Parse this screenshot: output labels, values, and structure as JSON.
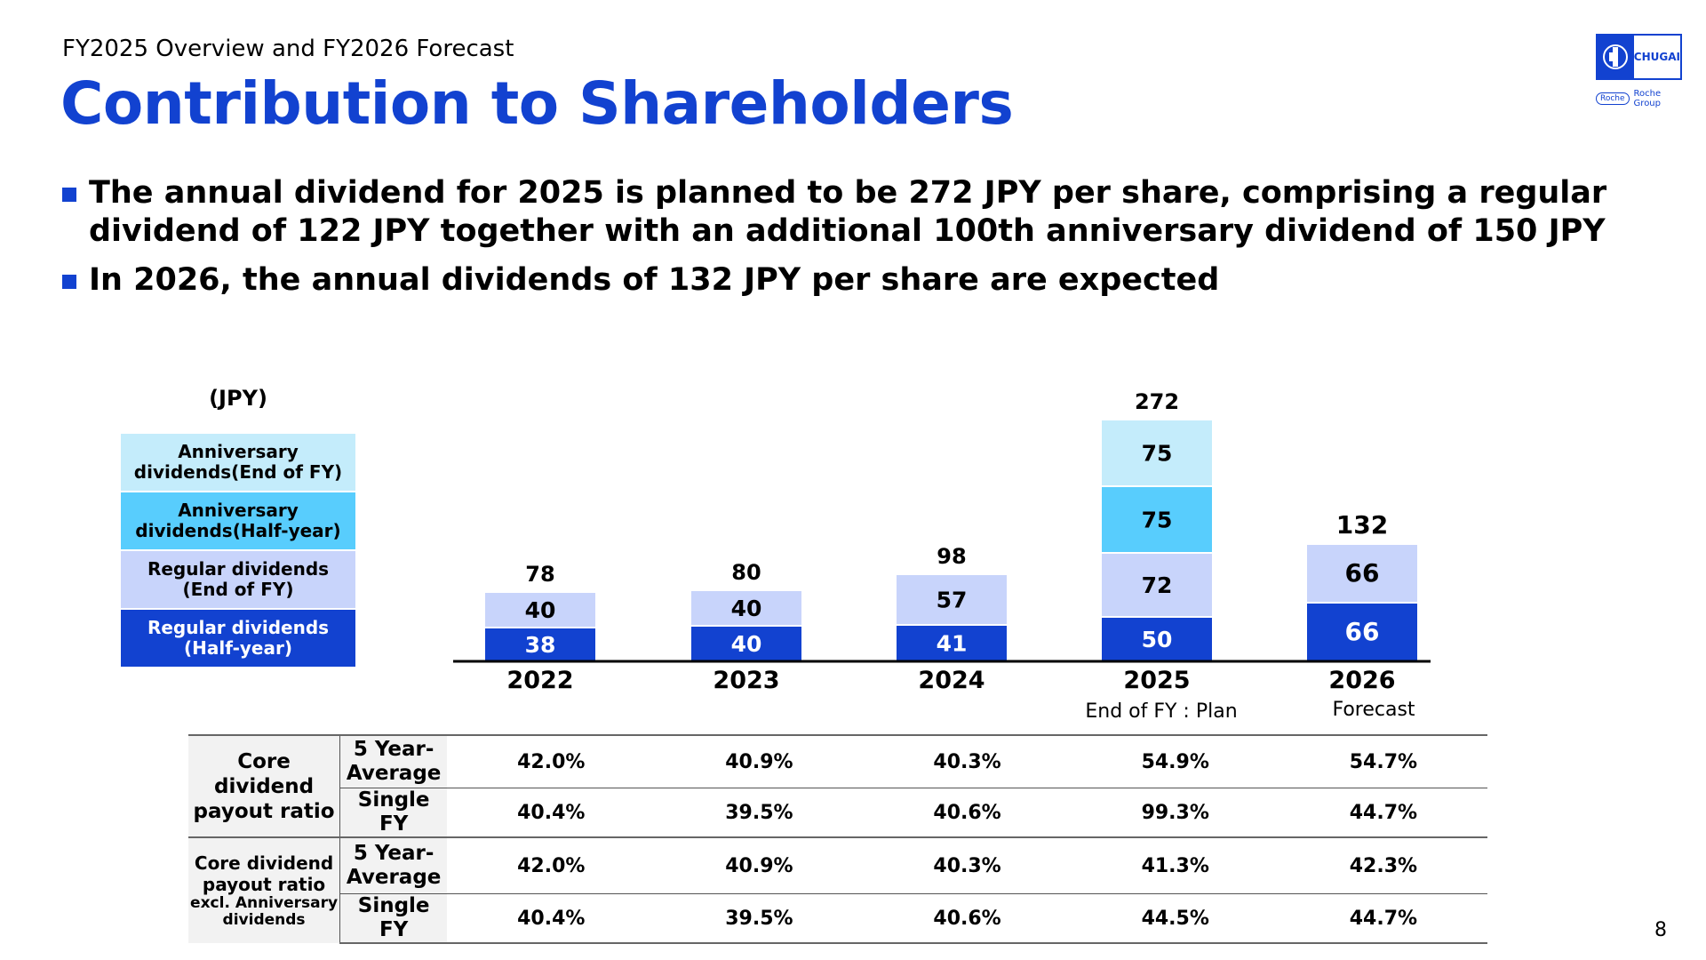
{
  "header": {
    "subtitle": "FY2025 Overview and FY2026 Forecast",
    "title": "Contribution to Shareholders"
  },
  "logo": {
    "brand": "CHUGAI",
    "roche": "Roche",
    "group": "Roche Group"
  },
  "bullets": [
    "The annual dividend for 2025 is planned to be 272 JPY per share, comprising a regular dividend of 122 JPY together with an additional 100th anniversary dividend of 150 JPY",
    "In 2026, the annual dividends of 132 JPY per share are expected"
  ],
  "unit_label": "(JPY)",
  "legend": [
    {
      "label": "Anniversary\ndividends(End of FY)",
      "color": "#c4ecfb",
      "text_color": "#000000"
    },
    {
      "label": "Anniversary\ndividends(Half-year)",
      "color": "#58cdfd",
      "text_color": "#000000"
    },
    {
      "label": "Regular dividends\n(End of FY)",
      "color": "#c8d4fb",
      "text_color": "#000000"
    },
    {
      "label": "Regular dividends\n(Half-year)",
      "color": "#1242d0",
      "text_color": "#ffffff"
    }
  ],
  "chart_data": {
    "type": "bar",
    "stacked": true,
    "categories": [
      "2022",
      "2023",
      "2024",
      "2025",
      "2026"
    ],
    "category_notes": [
      "",
      "",
      "",
      "End of FY : Plan",
      "Forecast"
    ],
    "series": [
      {
        "name": "Regular dividends (Half-year)",
        "values": [
          38,
          40,
          41,
          50,
          66
        ],
        "color": "#1242d0",
        "label_color": "#ffffff"
      },
      {
        "name": "Regular dividends (End of FY)",
        "values": [
          40,
          40,
          57,
          72,
          66
        ],
        "color": "#c8d4fb",
        "label_color": "#000000"
      },
      {
        "name": "Anniversary dividends(Half-year)",
        "values": [
          null,
          null,
          null,
          75,
          null
        ],
        "color": "#58cdfd",
        "label_color": "#000000"
      },
      {
        "name": "Anniversary dividends(End of FY)",
        "values": [
          null,
          null,
          null,
          75,
          null
        ],
        "color": "#c4ecfb",
        "label_color": "#000000"
      }
    ],
    "totals": [
      78,
      80,
      98,
      272,
      132
    ],
    "ylim": [
      0,
      272
    ],
    "legend_position": "left"
  },
  "table": {
    "group1": "Core\ndividend\npayout ratio",
    "group2_main": "Core dividend\npayout ratio",
    "group2_sub": "excl. Anniversary\ndividends",
    "five_year": "5 Year-\nAverage",
    "single_fy": "Single FY",
    "rows": [
      [
        "42.0%",
        "40.9%",
        "40.3%",
        "54.9%",
        "54.7%"
      ],
      [
        "40.4%",
        "39.5%",
        "40.6%",
        "99.3%",
        "44.7%"
      ],
      [
        "42.0%",
        "40.9%",
        "40.3%",
        "41.3%",
        "42.3%"
      ],
      [
        "40.4%",
        "39.5%",
        "40.6%",
        "44.5%",
        "44.7%"
      ]
    ]
  },
  "page_number": "8"
}
